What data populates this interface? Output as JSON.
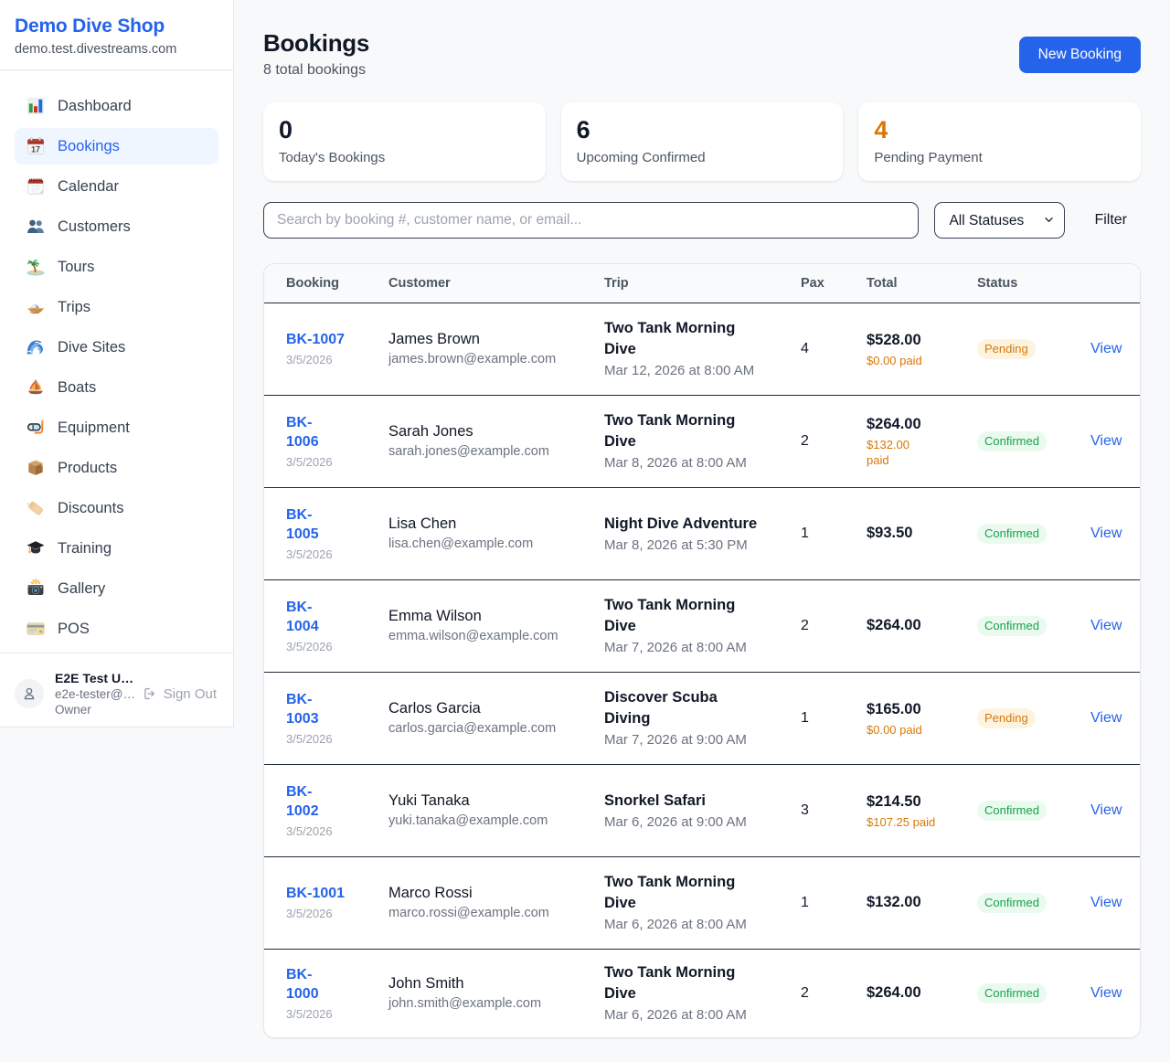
{
  "colors": {
    "brand_blue": "#2563eb",
    "accent_orange": "#d97706",
    "status_green": "#16a34a"
  },
  "sidebar": {
    "brand": {
      "name": "Demo Dive Shop",
      "domain": "demo.test.divestreams.com"
    },
    "items": [
      {
        "label": "Dashboard",
        "icon": "bar-chart-icon",
        "active": false
      },
      {
        "label": "Bookings",
        "icon": "calendar-icon",
        "active": true
      },
      {
        "label": "Calendar",
        "icon": "tear-off-calendar-icon",
        "active": false
      },
      {
        "label": "Customers",
        "icon": "users-icon",
        "active": false
      },
      {
        "label": "Tours",
        "icon": "island-icon",
        "active": false
      },
      {
        "label": "Trips",
        "icon": "speedboat-icon",
        "active": false
      },
      {
        "label": "Dive Sites",
        "icon": "wave-icon",
        "active": false
      },
      {
        "label": "Boats",
        "icon": "sailboat-icon",
        "active": false
      },
      {
        "label": "Equipment",
        "icon": "diving-mask-icon",
        "active": false
      },
      {
        "label": "Products",
        "icon": "package-icon",
        "active": false
      },
      {
        "label": "Discounts",
        "icon": "tag-icon",
        "active": false
      },
      {
        "label": "Training",
        "icon": "graduation-cap-icon",
        "active": false
      },
      {
        "label": "Gallery",
        "icon": "camera-flash-icon",
        "active": false
      },
      {
        "label": "POS",
        "icon": "credit-card-icon",
        "active": false
      }
    ],
    "user": {
      "name": "E2E Test U…",
      "email": "e2e-tester@…",
      "role": "Owner",
      "signout_label": "Sign Out"
    }
  },
  "header": {
    "title": "Bookings",
    "subtitle": "8 total bookings",
    "new_booking_label": "New Booking"
  },
  "stats": [
    {
      "value": "0",
      "label": "Today's Bookings",
      "accent": "dark"
    },
    {
      "value": "6",
      "label": "Upcoming Confirmed",
      "accent": "dark"
    },
    {
      "value": "4",
      "label": "Pending Payment",
      "accent": "orange"
    }
  ],
  "toolbar": {
    "search_placeholder": "Search by booking #, customer name, or email...",
    "status_filter_value": "All Statuses",
    "filter_label": "Filter"
  },
  "table": {
    "columns": [
      "Booking",
      "Customer",
      "Trip",
      "Pax",
      "Total",
      "Status",
      ""
    ],
    "rows": [
      {
        "id": "BK-1007",
        "id_wrap": false,
        "date": "3/5/2026",
        "customer": "James Brown",
        "email": "james.brown@example.com",
        "trip": "Two Tank Morning Dive",
        "trip_wrap": true,
        "trip_date": "Mar 12, 2026 at 8:00 AM",
        "pax": "4",
        "total": "$528.00",
        "paid": "$0.00 paid",
        "paid_wrap": false,
        "status": "Pending",
        "action": "View"
      },
      {
        "id": "BK-1006",
        "id_wrap": true,
        "date": "3/5/2026",
        "customer": "Sarah Jones",
        "email": "sarah.jones@example.com",
        "trip": "Two Tank Morning Dive",
        "trip_wrap": true,
        "trip_date": "Mar 8, 2026 at 8:00 AM",
        "pax": "2",
        "total": "$264.00",
        "paid": "$132.00 paid",
        "paid_wrap": true,
        "status": "Confirmed",
        "action": "View"
      },
      {
        "id": "BK-1005",
        "id_wrap": true,
        "date": "3/5/2026",
        "customer": "Lisa Chen",
        "email": "lisa.chen@example.com",
        "trip": "Night Dive Adventure",
        "trip_wrap": false,
        "trip_date": "Mar 8, 2026 at 5:30 PM",
        "pax": "1",
        "total": "$93.50",
        "paid": "",
        "paid_wrap": false,
        "status": "Confirmed",
        "action": "View"
      },
      {
        "id": "BK-1004",
        "id_wrap": true,
        "date": "3/5/2026",
        "customer": "Emma Wilson",
        "email": "emma.wilson@example.com",
        "trip": "Two Tank Morning Dive",
        "trip_wrap": true,
        "trip_date": "Mar 7, 2026 at 8:00 AM",
        "pax": "2",
        "total": "$264.00",
        "paid": "",
        "paid_wrap": false,
        "status": "Confirmed",
        "action": "View"
      },
      {
        "id": "BK-1003",
        "id_wrap": true,
        "date": "3/5/2026",
        "customer": "Carlos Garcia",
        "email": "carlos.garcia@example.com",
        "trip": "Discover Scuba Diving",
        "trip_wrap": true,
        "trip_date": "Mar 7, 2026 at 9:00 AM",
        "pax": "1",
        "total": "$165.00",
        "paid": "$0.00 paid",
        "paid_wrap": false,
        "status": "Pending",
        "action": "View"
      },
      {
        "id": "BK-1002",
        "id_wrap": true,
        "date": "3/5/2026",
        "customer": "Yuki Tanaka",
        "email": "yuki.tanaka@example.com",
        "trip": "Snorkel Safari",
        "trip_wrap": false,
        "trip_date": "Mar 6, 2026 at 9:00 AM",
        "pax": "3",
        "total": "$214.50",
        "paid": "$107.25 paid",
        "paid_wrap": false,
        "status": "Confirmed",
        "action": "View"
      },
      {
        "id": "BK-1001",
        "id_wrap": false,
        "date": "3/5/2026",
        "customer": "Marco Rossi",
        "email": "marco.rossi@example.com",
        "trip": "Two Tank Morning Dive",
        "trip_wrap": true,
        "trip_date": "Mar 6, 2026 at 8:00 AM",
        "pax": "1",
        "total": "$132.00",
        "paid": "",
        "paid_wrap": false,
        "status": "Confirmed",
        "action": "View"
      },
      {
        "id": "BK-1000",
        "id_wrap": true,
        "date": "3/5/2026",
        "customer": "John Smith",
        "email": "john.smith@example.com",
        "trip": "Two Tank Morning Dive",
        "trip_wrap": true,
        "trip_date": "Mar 6, 2026 at 8:00 AM",
        "pax": "2",
        "total": "$264.00",
        "paid": "",
        "paid_wrap": false,
        "status": "Confirmed",
        "action": "View"
      }
    ]
  }
}
